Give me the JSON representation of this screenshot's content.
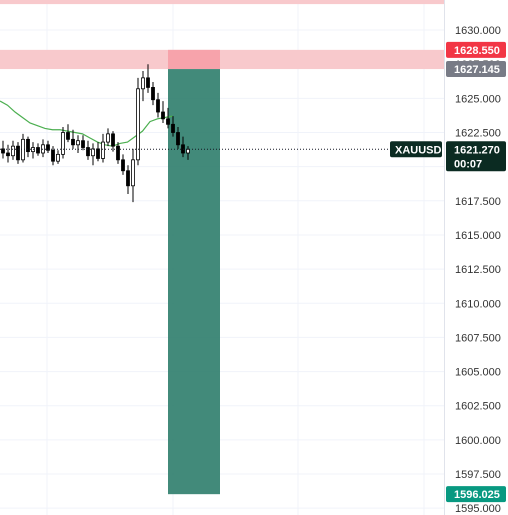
{
  "chart_data": {
    "type": "candlestick",
    "symbol": "XAUUSD",
    "countdown": "00:07",
    "ylim": [
      1594.5,
      1632.2
    ],
    "y_ticks": [
      "1595.000",
      "1597.500",
      "1600.000",
      "1602.500",
      "1605.000",
      "1607.500",
      "1610.000",
      "1612.500",
      "1615.000",
      "1617.500",
      "1620.000",
      "1622.500",
      "1625.000",
      "1627.500",
      "1630.000"
    ],
    "grid": true,
    "last_price": "1621.270",
    "price_tags": {
      "stop": "1628.550",
      "entry": "1627.145",
      "target": "1596.025"
    },
    "zones": {
      "top_band": [
        1631.9,
        1632.6
      ],
      "stop_band": [
        1627.145,
        1628.55
      ]
    },
    "position": {
      "direction": "short",
      "entry": 1627.145,
      "stop": 1628.55,
      "target": 1596.025
    },
    "colors": {
      "bull": "#ffffff",
      "bear": "#000000",
      "wick": "#000000",
      "moving_average": "#4caf50",
      "stop_zone": "#f7a1a9",
      "target_zone": "#2e7d6b",
      "band": "#f8c9cc",
      "stop_tag": "#f23645",
      "entry_tag": "#787b86",
      "target_tag": "#089981",
      "symbol_tag": "#0b2b22"
    },
    "candles": [
      [
        1621.3,
        1621.9,
        1620.6,
        1621.0
      ],
      [
        1621.0,
        1621.6,
        1620.3,
        1620.8
      ],
      [
        1620.8,
        1621.9,
        1620.5,
        1621.5
      ],
      [
        1621.5,
        1621.8,
        1620.2,
        1620.5
      ],
      [
        1620.5,
        1622.4,
        1620.3,
        1622.0
      ],
      [
        1622.0,
        1622.2,
        1620.7,
        1621.1
      ],
      [
        1621.1,
        1621.8,
        1620.6,
        1621.4
      ],
      [
        1621.4,
        1621.7,
        1620.8,
        1621.0
      ],
      [
        1621.0,
        1622.0,
        1620.7,
        1621.6
      ],
      [
        1621.6,
        1621.9,
        1621.0,
        1621.2
      ],
      [
        1621.2,
        1621.5,
        1620.1,
        1620.4
      ],
      [
        1620.4,
        1621.2,
        1620.2,
        1620.9
      ],
      [
        1620.9,
        1622.9,
        1620.6,
        1622.5
      ],
      [
        1622.5,
        1623.1,
        1621.8,
        1622.0
      ],
      [
        1622.0,
        1622.7,
        1621.3,
        1621.6
      ],
      [
        1621.6,
        1622.3,
        1621.0,
        1621.9
      ],
      [
        1621.9,
        1622.3,
        1621.2,
        1621.4
      ],
      [
        1621.4,
        1621.9,
        1620.5,
        1620.8
      ],
      [
        1620.8,
        1621.7,
        1620.1,
        1621.3
      ],
      [
        1621.3,
        1621.8,
        1620.4,
        1620.6
      ],
      [
        1620.6,
        1622.4,
        1620.3,
        1621.8
      ],
      [
        1621.8,
        1622.8,
        1621.5,
        1622.4
      ],
      [
        1622.4,
        1622.6,
        1621.1,
        1621.5
      ],
      [
        1621.5,
        1621.8,
        1620.2,
        1620.5
      ],
      [
        1620.5,
        1620.9,
        1619.4,
        1619.7
      ],
      [
        1619.7,
        1620.1,
        1618.0,
        1618.6
      ],
      [
        1618.6,
        1621.3,
        1617.4,
        1620.5
      ],
      [
        1620.5,
        1626.5,
        1620.1,
        1625.7
      ],
      [
        1625.7,
        1627.0,
        1624.8,
        1626.5
      ],
      [
        1626.5,
        1627.5,
        1625.4,
        1625.8
      ],
      [
        1625.8,
        1626.2,
        1624.5,
        1624.9
      ],
      [
        1624.9,
        1625.4,
        1623.6,
        1624.0
      ],
      [
        1624.0,
        1624.8,
        1623.2,
        1623.5
      ],
      [
        1623.5,
        1624.3,
        1622.8,
        1623.1
      ],
      [
        1623.1,
        1623.7,
        1622.2,
        1622.5
      ],
      [
        1622.5,
        1622.9,
        1621.3,
        1621.6
      ],
      [
        1621.6,
        1622.2,
        1620.7,
        1621.0
      ],
      [
        1621.0,
        1621.5,
        1620.5,
        1621.27
      ]
    ],
    "moving_average": [
      1624.8,
      1624.5,
      1624.0,
      1623.6,
      1623.2,
      1623.0,
      1622.8,
      1622.7,
      1622.7,
      1622.6,
      1622.5,
      1622.4,
      1622.1,
      1621.8,
      1621.6,
      1621.5,
      1621.7,
      1621.8,
      1622.2,
      1622.6,
      1623.3,
      1623.5,
      1623.6,
      1623.7
    ]
  }
}
